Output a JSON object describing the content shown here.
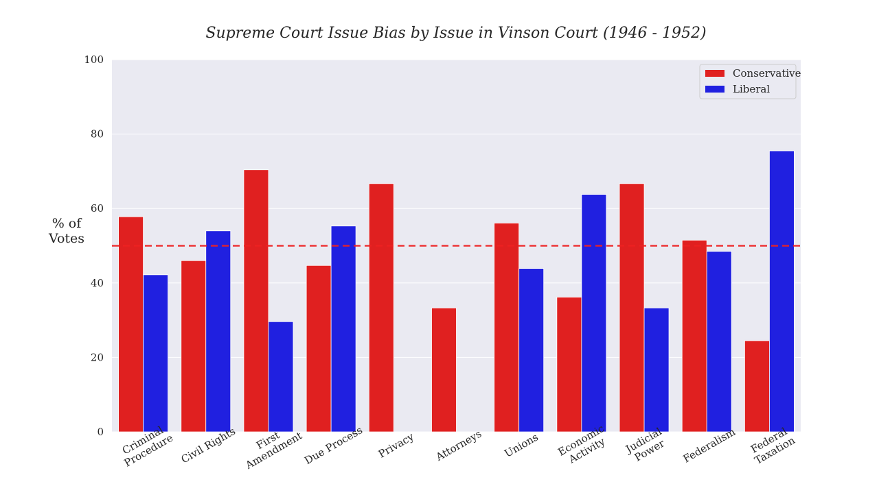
{
  "chart_data": {
    "type": "bar",
    "title": "Supreme Court Issue Bias by Issue in Vinson Court (1946 - 1952)",
    "ylabel_lines": [
      "% of",
      "Votes"
    ],
    "xlabel": "",
    "ylim": [
      0,
      100
    ],
    "yticks": [
      0,
      20,
      40,
      60,
      80,
      100
    ],
    "grid": true,
    "legend_placement": "top-right",
    "reference_line": {
      "y": 50,
      "style": "dashed",
      "color": "#ee2222"
    },
    "categories": [
      [
        "Criminal",
        "Procedure"
      ],
      [
        "Civil Rights"
      ],
      [
        "First",
        "Amendment"
      ],
      [
        "Due Process"
      ],
      [
        "Privacy"
      ],
      [
        "Attorneys"
      ],
      [
        "Unions"
      ],
      [
        "Economic",
        "Activity"
      ],
      [
        "Judicial",
        "Power"
      ],
      [
        "Federalism"
      ],
      [
        "Federal",
        "Taxation"
      ]
    ],
    "series": [
      {
        "name": "Conservative",
        "color": "#e02020",
        "values": [
          57.8,
          46.0,
          70.4,
          44.7,
          66.7,
          33.3,
          56.1,
          36.2,
          66.7,
          51.5,
          24.5
        ]
      },
      {
        "name": "Liberal",
        "color": "#2020e0",
        "values": [
          42.2,
          54.0,
          29.6,
          55.3,
          0,
          0,
          43.9,
          63.8,
          33.3,
          48.5,
          75.5
        ]
      }
    ]
  }
}
